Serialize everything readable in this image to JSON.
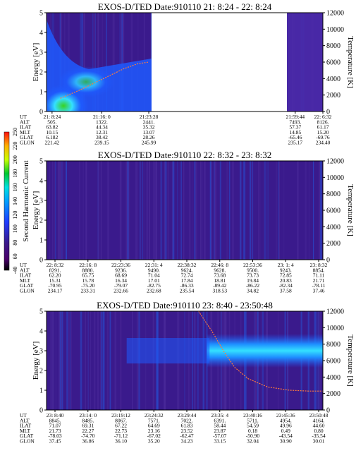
{
  "colors": {
    "background": "#ffffff",
    "spectrogram_low": "#3a1a8c",
    "spectrogram_mid": "#1e5bff",
    "spectrogram_high": "#34e0ff",
    "spectrogram_peak": "#38d21f",
    "temperature_trace": "#ff7a3d"
  },
  "colorbar": {
    "label": "Second Harmonic Current",
    "ticks": [
      "-40",
      "60",
      "80",
      "100",
      "120",
      "140",
      "160",
      "180",
      "200",
      "220",
      "250"
    ]
  },
  "ephem_labels": [
    "UT",
    "ALT",
    "ILAT",
    "MLT",
    "GLAT",
    "GLON"
  ],
  "chart_data": [
    {
      "type": "heatmap",
      "title": "EXOS-D/TED   Date:910110  21: 8:24 - 22: 8:24",
      "ylabel": "Energy [eV]",
      "ylim": [
        0,
        5
      ],
      "y_ticks": [
        "0",
        "1",
        "2",
        "3",
        "4",
        "5"
      ],
      "y2label": "Temperature [K]",
      "y2lim": [
        0,
        12000
      ],
      "y2_ticks": [
        "0",
        "2000",
        "4000",
        "6000",
        "8000",
        "10000",
        "12000"
      ],
      "data_gap": [
        0.38,
        0.87
      ],
      "ephemeris": [
        {
          "UT": "21: 8:24",
          "ALT": "505.",
          "ILAT": "63.82",
          "MLT": "10.15",
          "GLAT": "6.182",
          "GLON": "221.42"
        },
        {
          "UT": "21:16: 0",
          "ALT": "1322.",
          "ILAT": "44.34",
          "MLT": "12.31",
          "GLAT": "38.42",
          "GLON": "239.15"
        },
        {
          "UT": "21:23:28",
          "ALT": "2441.",
          "ILAT": "35.32",
          "MLT": "13.07",
          "GLAT": "28.26",
          "GLON": "245.99"
        },
        {
          "UT": "21:59:44",
          "ALT": "7493.",
          "ILAT": "57.37",
          "MLT": "14.85",
          "GLAT": "-65.46",
          "GLON": "235.17"
        },
        {
          "UT": "22: 6:32",
          "ALT": "8126.",
          "ILAT": "61.17",
          "MLT": "15.20",
          "GLAT": "-69.76",
          "GLON": "234.40"
        }
      ],
      "temperature_trace": [
        [
          0.05,
          1600
        ],
        [
          0.12,
          2600
        ],
        [
          0.2,
          3900
        ],
        [
          0.28,
          5200
        ],
        [
          0.33,
          5800
        ],
        [
          0.37,
          6000
        ]
      ]
    },
    {
      "type": "heatmap",
      "title": "EXOS-D/TED   Date:910110  22: 8:32 - 23: 8:32",
      "ylabel": "Energy [eV]",
      "ylim": [
        0,
        5
      ],
      "y_ticks": [
        "0",
        "1",
        "2",
        "3",
        "4",
        "5"
      ],
      "y2label": "Temperature [K]",
      "y2lim": [
        0,
        12000
      ],
      "y2_ticks": [
        "0",
        "2000",
        "4000",
        "6000",
        "8000",
        "10000",
        "12000"
      ],
      "ephemeris": [
        {
          "UT": "22: 8:32",
          "ALT": "8291.",
          "ILAT": "62.20",
          "MLT": "15.31",
          "GLAT": "-70.95",
          "GLON": "234.17"
        },
        {
          "UT": "22:16: 8",
          "ALT": "8880.",
          "ILAT": "65.75",
          "MLT": "15.78",
          "GLAT": "-75.20",
          "GLON": "233.31"
        },
        {
          "UT": "22:23:36",
          "ALT": "9236.",
          "ILAT": "68.69",
          "MLT": "16.34",
          "GLAT": "-79.07",
          "GLON": "232.66"
        },
        {
          "UT": "22:31: 4",
          "ALT": "9490.",
          "ILAT": "71.04",
          "MLT": "17.01",
          "GLAT": "-82.75",
          "GLON": "232.68"
        },
        {
          "UT": "22:38:32",
          "ALT": "9624.",
          "ILAT": "72.74",
          "MLT": "17.84",
          "GLAT": "-86.33",
          "GLON": "235.54"
        },
        {
          "UT": "22:46: 8",
          "ALT": "9628.",
          "ILAT": "73.68",
          "MLT": "18.81",
          "GLAT": "-89.42",
          "GLON": "318.53"
        },
        {
          "UT": "22:53:36",
          "ALT": "9500.",
          "ILAT": "73.73",
          "MLT": "19.84",
          "GLAT": "-86.22",
          "GLON": "34.82"
        },
        {
          "UT": "23: 1: 4",
          "ALT": "9243.",
          "ILAT": "72.85",
          "MLT": "20.83",
          "GLAT": "-82.34",
          "GLON": "37.58"
        },
        {
          "UT": "23: 8:32",
          "ALT": "8854.",
          "ILAT": "71.11",
          "MLT": "21.71",
          "GLAT": "-78.11",
          "GLON": "37.46"
        }
      ]
    },
    {
      "type": "heatmap",
      "title": "EXOS-D/TED   Date:910110  23: 8:40 - 23:50:48",
      "ylabel": "Energy [eV]",
      "ylim": [
        0,
        5
      ],
      "y_ticks": [
        "0",
        "1",
        "2",
        "3",
        "4",
        "5"
      ],
      "y2label": "Temperature [K]",
      "y2lim": [
        0,
        12000
      ],
      "y2_ticks": [
        "0",
        "2000",
        "4000",
        "6000",
        "8000",
        "10000",
        "12000"
      ],
      "ephemeris": [
        {
          "UT": "23: 8:40",
          "ALT": "8845.",
          "ILAT": "71.07",
          "MLT": "21.73",
          "GLAT": "-78.03",
          "GLON": "37.45"
        },
        {
          "UT": "23:14: 0",
          "ALT": "8485.",
          "ILAT": "69.31",
          "MLT": "22.27",
          "GLAT": "-74.70",
          "GLON": "36.86"
        },
        {
          "UT": "23:19:12",
          "ALT": "8067.",
          "ILAT": "67.22",
          "MLT": "22.73",
          "GLAT": "-71.12",
          "GLON": "36.10"
        },
        {
          "UT": "23:24:32",
          "ALT": "7571.",
          "ILAT": "64.69",
          "MLT": "23.16",
          "GLAT": "-67.02",
          "GLON": "35.20"
        },
        {
          "UT": "23:29:44",
          "ALT": "7022.",
          "ILAT": "61.83",
          "MLT": "23.52",
          "GLAT": "-62.47",
          "GLON": "34.23"
        },
        {
          "UT": "23:35: 4",
          "ALT": "6391.",
          "ILAT": "58.44",
          "MLT": "23.87",
          "GLAT": "-57.07",
          "GLON": "33.15"
        },
        {
          "UT": "23:40:16",
          "ALT": "5711.",
          "ILAT": "54.59",
          "MLT": "0.18",
          "GLAT": "-50.90",
          "GLON": "32.04"
        },
        {
          "UT": "23:45:36",
          "ALT": "4954.",
          "ILAT": "49.96",
          "MLT": "0.49",
          "GLAT": "-43.54",
          "GLON": "30.90"
        },
        {
          "UT": "23:50:48",
          "ALT": "4164.",
          "ILAT": "44.60",
          "MLT": "0.80",
          "GLAT": "-35.54",
          "GLON": "30.01"
        }
      ],
      "temperature_trace": [
        [
          0.55,
          12000
        ],
        [
          0.6,
          9500
        ],
        [
          0.64,
          7200
        ],
        [
          0.68,
          5200
        ],
        [
          0.73,
          3800
        ],
        [
          0.8,
          2800
        ],
        [
          0.88,
          2400
        ],
        [
          0.95,
          2300
        ],
        [
          1.0,
          2300
        ]
      ]
    }
  ]
}
